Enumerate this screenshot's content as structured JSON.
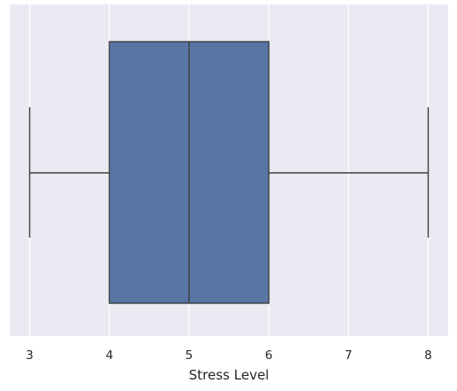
{
  "chart_data": {
    "type": "boxplot",
    "orientation": "horizontal",
    "xlabel": "Stress Level",
    "ylabel": "",
    "xlim": [
      2.75,
      8.25
    ],
    "xticks": [
      3,
      4,
      5,
      6,
      7,
      8
    ],
    "grid": true,
    "box": {
      "min": 3,
      "q1": 4,
      "median": 5,
      "q3": 6,
      "max": 8
    },
    "colors": {
      "box_fill": "#5975a4",
      "line": "#3f3f3f",
      "background": "#eaeaf2",
      "grid": "#ffffff"
    }
  }
}
